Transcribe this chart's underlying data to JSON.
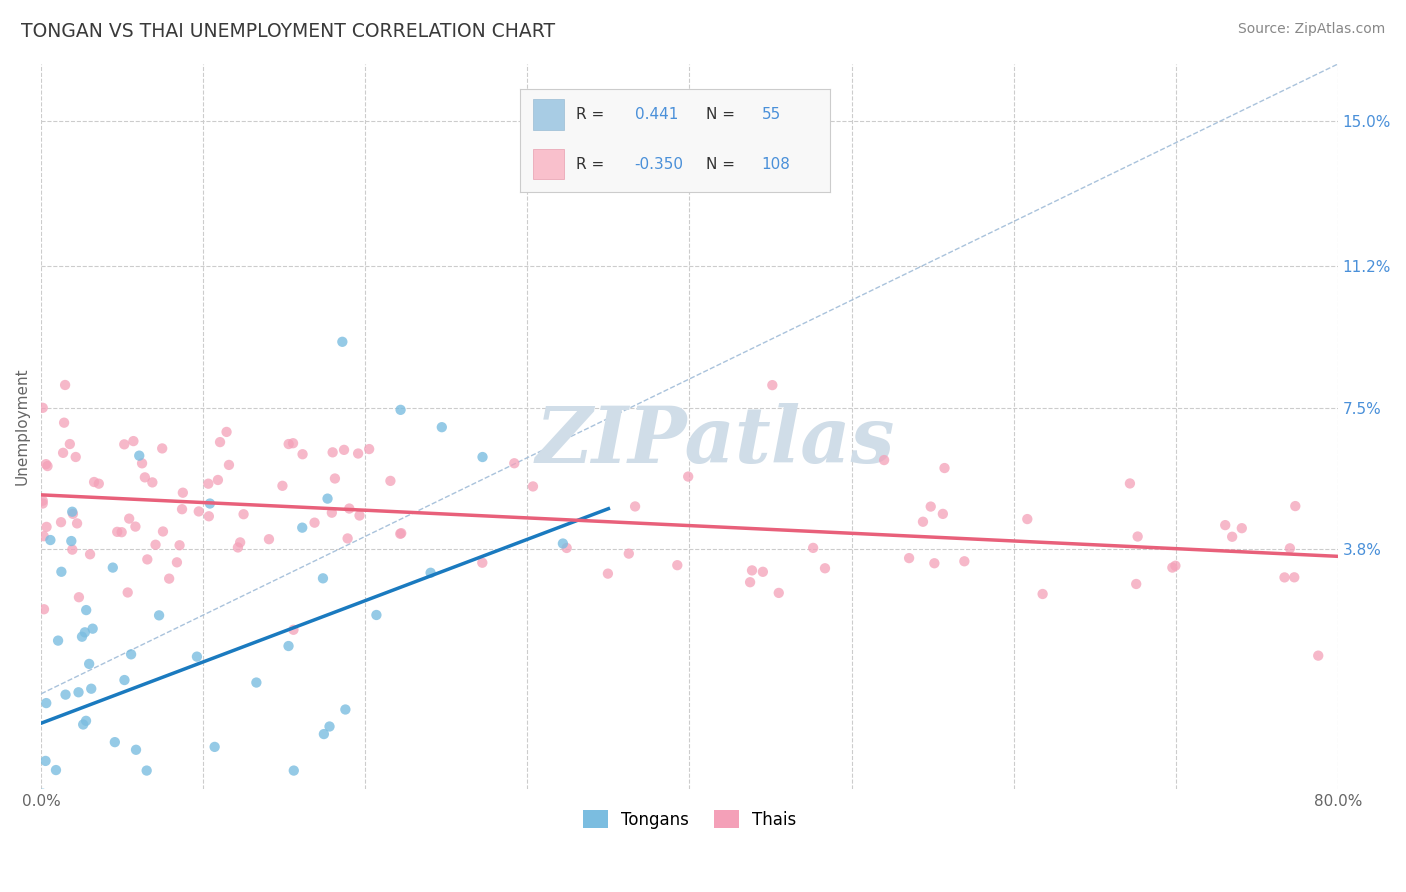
{
  "title": "TONGAN VS THAI UNEMPLOYMENT CORRELATION CHART",
  "source_text": "Source: ZipAtlas.com",
  "ylabel": "Unemployment",
  "xlim": [
    0.0,
    0.8
  ],
  "ylim": [
    -0.025,
    0.165
  ],
  "x_ticks": [
    0.0,
    0.1,
    0.2,
    0.3,
    0.4,
    0.5,
    0.6,
    0.7,
    0.8
  ],
  "y_tick_positions": [
    0.038,
    0.075,
    0.112,
    0.15
  ],
  "y_tick_labels": [
    "3.8%",
    "7.5%",
    "11.2%",
    "15.0%"
  ],
  "grid_color": "#cccccc",
  "background_color": "#ffffff",
  "tongan_color": "#7bbde0",
  "thai_color": "#f4a0b8",
  "tongan_line_color": "#1a7abf",
  "thai_line_color": "#e8607a",
  "ref_line_color": "#a0bcd8",
  "watermark": "ZIPatlas",
  "watermark_color": "#d0dde8",
  "legend_box_color": "#f8f8f8",
  "legend_border_color": "#cccccc",
  "legend_R_color": "#4a90d9",
  "legend_label_color": "#333333"
}
